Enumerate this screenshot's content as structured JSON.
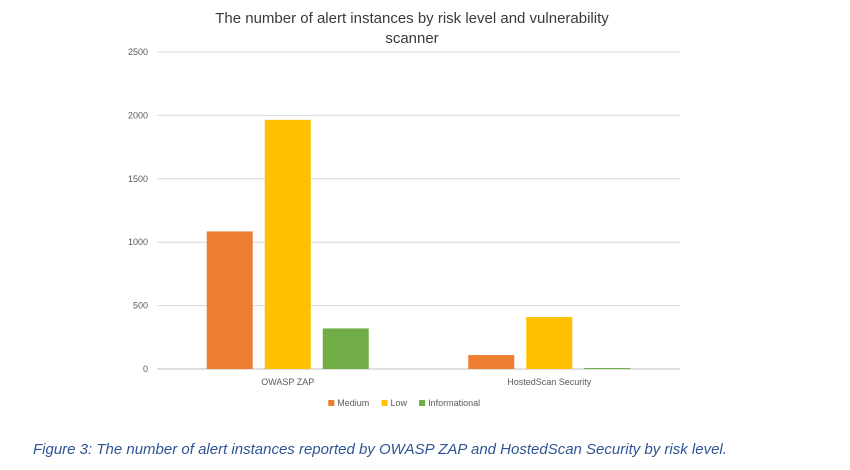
{
  "chart_data": {
    "type": "bar",
    "title_lines": [
      "The number of alert instances by risk level and vulnerability",
      "scanner"
    ],
    "categories": [
      "OWASP ZAP",
      "HostedScan Security"
    ],
    "series": [
      {
        "name": "Medium",
        "color": "#ED7D31",
        "values": [
          1085,
          110
        ]
      },
      {
        "name": "Low",
        "color": "#FFC000",
        "values": [
          1965,
          410
        ]
      },
      {
        "name": "Informational",
        "color": "#70AD47",
        "values": [
          320,
          8
        ]
      }
    ],
    "ylim": [
      0,
      2500
    ],
    "yticks": [
      0,
      500,
      1000,
      1500,
      2000,
      2500
    ],
    "grid": true,
    "legend_position": "bottom"
  },
  "caption": "Figure 3: The number of alert instances reported by OWASP ZAP and HostedScan Security by risk level."
}
